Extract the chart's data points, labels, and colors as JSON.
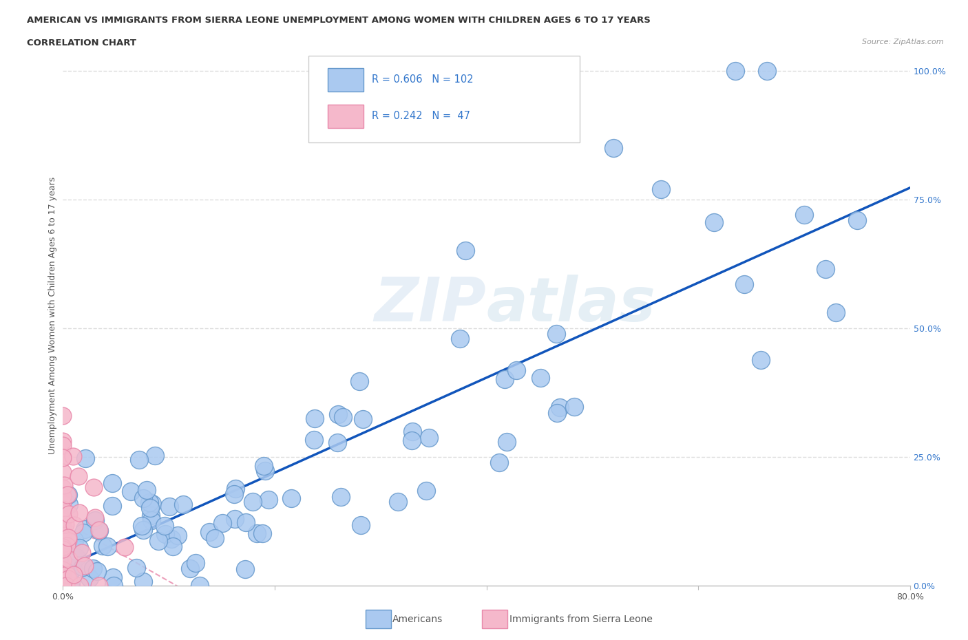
{
  "title_line1": "AMERICAN VS IMMIGRANTS FROM SIERRA LEONE UNEMPLOYMENT AMONG WOMEN WITH CHILDREN AGES 6 TO 17 YEARS",
  "title_line2": "CORRELATION CHART",
  "source_text": "Source: ZipAtlas.com",
  "ylabel": "Unemployment Among Women with Children Ages 6 to 17 years",
  "xlim": [
    0.0,
    0.8
  ],
  "ylim": [
    0.0,
    1.05
  ],
  "xtick_labels": [
    "0.0%",
    "",
    "",
    "",
    "80.0%"
  ],
  "xtick_vals": [
    0.0,
    0.2,
    0.4,
    0.6,
    0.8
  ],
  "ytick_labels": [
    "100.0%",
    "75.0%",
    "50.0%",
    "25.0%",
    "0.0%"
  ],
  "ytick_vals": [
    1.0,
    0.75,
    0.5,
    0.25,
    0.0
  ],
  "grid_ytick_vals": [
    1.0,
    0.75,
    0.5,
    0.25
  ],
  "americans_color": "#aac9f0",
  "immigrants_color": "#f5b8cb",
  "americans_edge": "#6699cc",
  "immigrants_edge": "#e888aa",
  "R_americans": 0.606,
  "N_americans": 102,
  "R_immigrants": 0.242,
  "N_immigrants": 47,
  "legend_R_color": "#3377cc",
  "trendline_americans_color": "#1155bb",
  "trendline_immigrants_color": "#e888aa",
  "watermark": "ZIPatlas",
  "background_color": "#ffffff",
  "grid_color": "#dddddd"
}
